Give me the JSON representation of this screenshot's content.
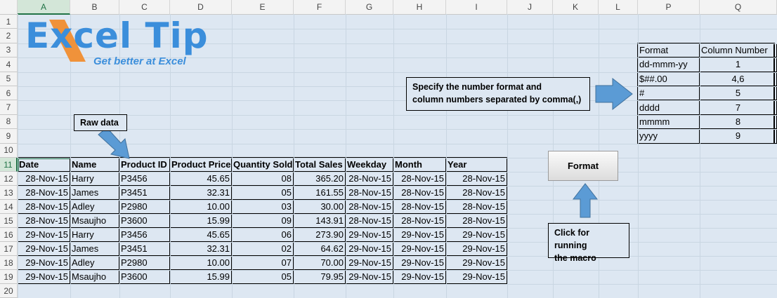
{
  "column_headers": [
    "A",
    "B",
    "C",
    "D",
    "E",
    "F",
    "G",
    "H",
    "I",
    "J",
    "K",
    "L",
    "P",
    "Q"
  ],
  "row_headers": [
    1,
    2,
    3,
    4,
    5,
    6,
    7,
    8,
    9,
    10,
    11,
    12,
    13,
    14,
    15,
    16,
    17,
    18,
    19,
    20
  ],
  "logo": {
    "title": "Excel Tip",
    "tagline": "Get better at Excel"
  },
  "table": {
    "headers": [
      "Date",
      "Name",
      "Product ID",
      "Product Price",
      "Quantity Sold",
      "Total Sales",
      "Weekday",
      "Month",
      "Year"
    ],
    "rows": [
      [
        "28-Nov-15",
        "Harry",
        "P3456",
        "45.65",
        "08",
        "365.20",
        "28-Nov-15",
        "28-Nov-15",
        "28-Nov-15"
      ],
      [
        "28-Nov-15",
        "James",
        "P3451",
        "32.31",
        "05",
        "161.55",
        "28-Nov-15",
        "28-Nov-15",
        "28-Nov-15"
      ],
      [
        "28-Nov-15",
        "Adley",
        "P2980",
        "10.00",
        "03",
        "30.00",
        "28-Nov-15",
        "28-Nov-15",
        "28-Nov-15"
      ],
      [
        "28-Nov-15",
        "Msaujho",
        "P3600",
        "15.99",
        "09",
        "143.91",
        "28-Nov-15",
        "28-Nov-15",
        "28-Nov-15"
      ],
      [
        "29-Nov-15",
        "Harry",
        "P3456",
        "45.65",
        "06",
        "273.90",
        "29-Nov-15",
        "29-Nov-15",
        "29-Nov-15"
      ],
      [
        "29-Nov-15",
        "James",
        "P3451",
        "32.31",
        "02",
        "64.62",
        "29-Nov-15",
        "29-Nov-15",
        "29-Nov-15"
      ],
      [
        "29-Nov-15",
        "Adley",
        "P2980",
        "10.00",
        "07",
        "70.00",
        "29-Nov-15",
        "29-Nov-15",
        "29-Nov-15"
      ],
      [
        "29-Nov-15",
        "Msaujho",
        "P3600",
        "15.99",
        "05",
        "79.95",
        "29-Nov-15",
        "29-Nov-15",
        "29-Nov-15"
      ]
    ]
  },
  "format_table": {
    "headers": [
      "Format",
      "Column Number"
    ],
    "rows": [
      [
        "dd-mmm-yy",
        "1"
      ],
      [
        "$##.00",
        "4,6"
      ],
      [
        "#",
        "5"
      ],
      [
        "dddd",
        "7"
      ],
      [
        "mmmm",
        "8"
      ],
      [
        "yyyy",
        "9"
      ]
    ]
  },
  "callouts": {
    "raw_data": "Raw data",
    "specify": [
      "Specify the number format and",
      "column numbers separated by comma(,)"
    ],
    "click": [
      "Click for running",
      "the macro"
    ]
  },
  "button": "Format"
}
